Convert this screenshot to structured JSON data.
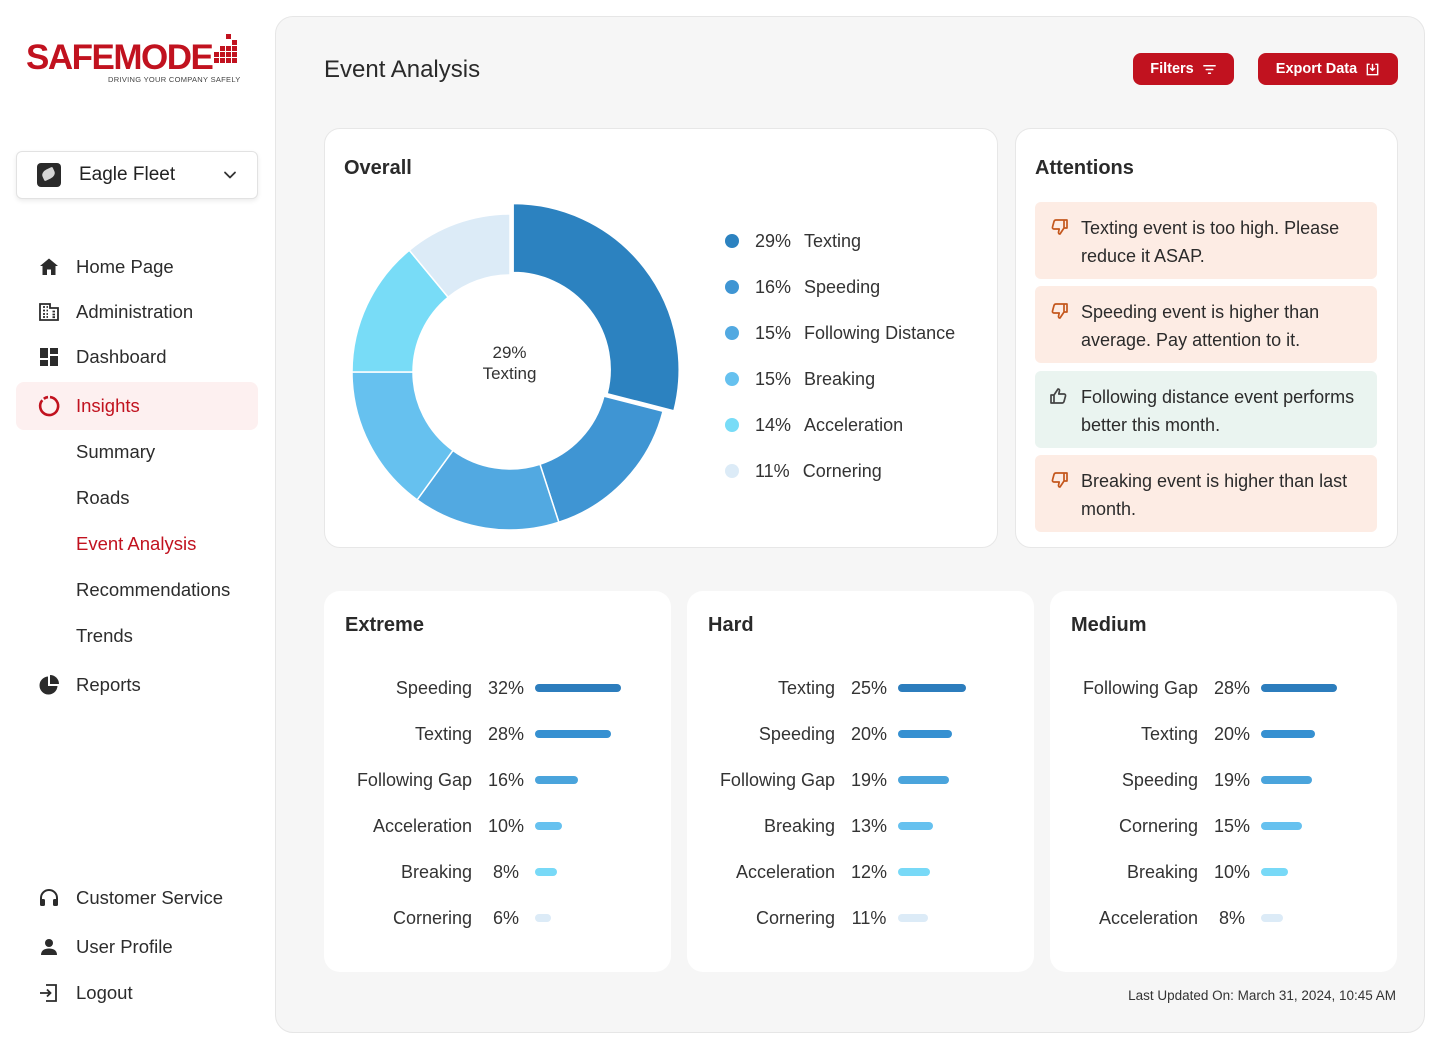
{
  "brand": {
    "name_safe": "SAFE",
    "name_mode": "MODE",
    "tagline": "DRIVING YOUR COMPANY SAFELY",
    "color": "#c1121f"
  },
  "fleet_selector": {
    "value": "Eagle Fleet"
  },
  "nav": {
    "home": "Home Page",
    "administration": "Administration",
    "dashboard": "Dashboard",
    "insights": "Insights",
    "sub": [
      "Summary",
      "Roads",
      "Event Analysis",
      "Recommendations",
      "Trends"
    ],
    "reports": "Reports",
    "customer_service": "Customer Service",
    "user_profile": "User Profile",
    "logout": "Logout"
  },
  "header": {
    "title": "Event Analysis",
    "filters_label": "Filters",
    "export_label": "Export Data"
  },
  "overall": {
    "title": "Overall",
    "center_pct": "29%",
    "center_label": "Texting"
  },
  "chart_data": {
    "type": "pie",
    "title": "Overall",
    "categories": [
      "Texting",
      "Speeding",
      "Following Distance",
      "Breaking",
      "Acceleration",
      "Cornering"
    ],
    "values": [
      29,
      16,
      15,
      15,
      14,
      11
    ],
    "labels": [
      "29%",
      "16%",
      "15%",
      "15%",
      "14%",
      "11%"
    ],
    "colors": [
      "#2c82c0",
      "#3f95d3",
      "#52a9e1",
      "#66c1ef",
      "#78dcf7",
      "#dcebf7"
    ]
  },
  "attentions": {
    "title": "Attentions",
    "items": [
      {
        "text": "Texting event is too high. Please reduce it ASAP.",
        "kind": "bad"
      },
      {
        "text": "Speeding event is higher than average. Pay attention to it.",
        "kind": "bad"
      },
      {
        "text": "Following distance event performs better this month.",
        "kind": "good"
      },
      {
        "text": "Breaking event is higher than last month.",
        "kind": "bad"
      }
    ]
  },
  "severity": [
    {
      "title": "Extreme",
      "rows": [
        {
          "label": "Speeding",
          "pct": "32%",
          "value": 32
        },
        {
          "label": "Texting",
          "pct": "28%",
          "value": 28
        },
        {
          "label": "Following Gap",
          "pct": "16%",
          "value": 16
        },
        {
          "label": "Acceleration",
          "pct": "10%",
          "value": 10
        },
        {
          "label": "Breaking",
          "pct": "8%",
          "value": 8
        },
        {
          "label": "Cornering",
          "pct": "6%",
          "value": 6
        }
      ]
    },
    {
      "title": "Hard",
      "rows": [
        {
          "label": "Texting",
          "pct": "25%",
          "value": 25
        },
        {
          "label": "Speeding",
          "pct": "20%",
          "value": 20
        },
        {
          "label": "Following Gap",
          "pct": "19%",
          "value": 19
        },
        {
          "label": "Breaking",
          "pct": "13%",
          "value": 13
        },
        {
          "label": "Acceleration",
          "pct": "12%",
          "value": 12
        },
        {
          "label": "Cornering",
          "pct": "11%",
          "value": 11
        }
      ]
    },
    {
      "title": "Medium",
      "rows": [
        {
          "label": "Following Gap",
          "pct": "28%",
          "value": 28
        },
        {
          "label": "Texting",
          "pct": "20%",
          "value": 20
        },
        {
          "label": "Speeding",
          "pct": "19%",
          "value": 19
        },
        {
          "label": "Cornering",
          "pct": "15%",
          "value": 15
        },
        {
          "label": "Breaking",
          "pct": "10%",
          "value": 10
        },
        {
          "label": "Acceleration",
          "pct": "8%",
          "value": 8
        }
      ]
    }
  ],
  "bar_colors": [
    "#2c7dbd",
    "#3690d1",
    "#4aa4dc",
    "#66c1ef",
    "#78d9f7",
    "#dcebf7"
  ],
  "footer": {
    "last_updated": "Last Updated On: March 31, 2024, 10:45 AM"
  }
}
